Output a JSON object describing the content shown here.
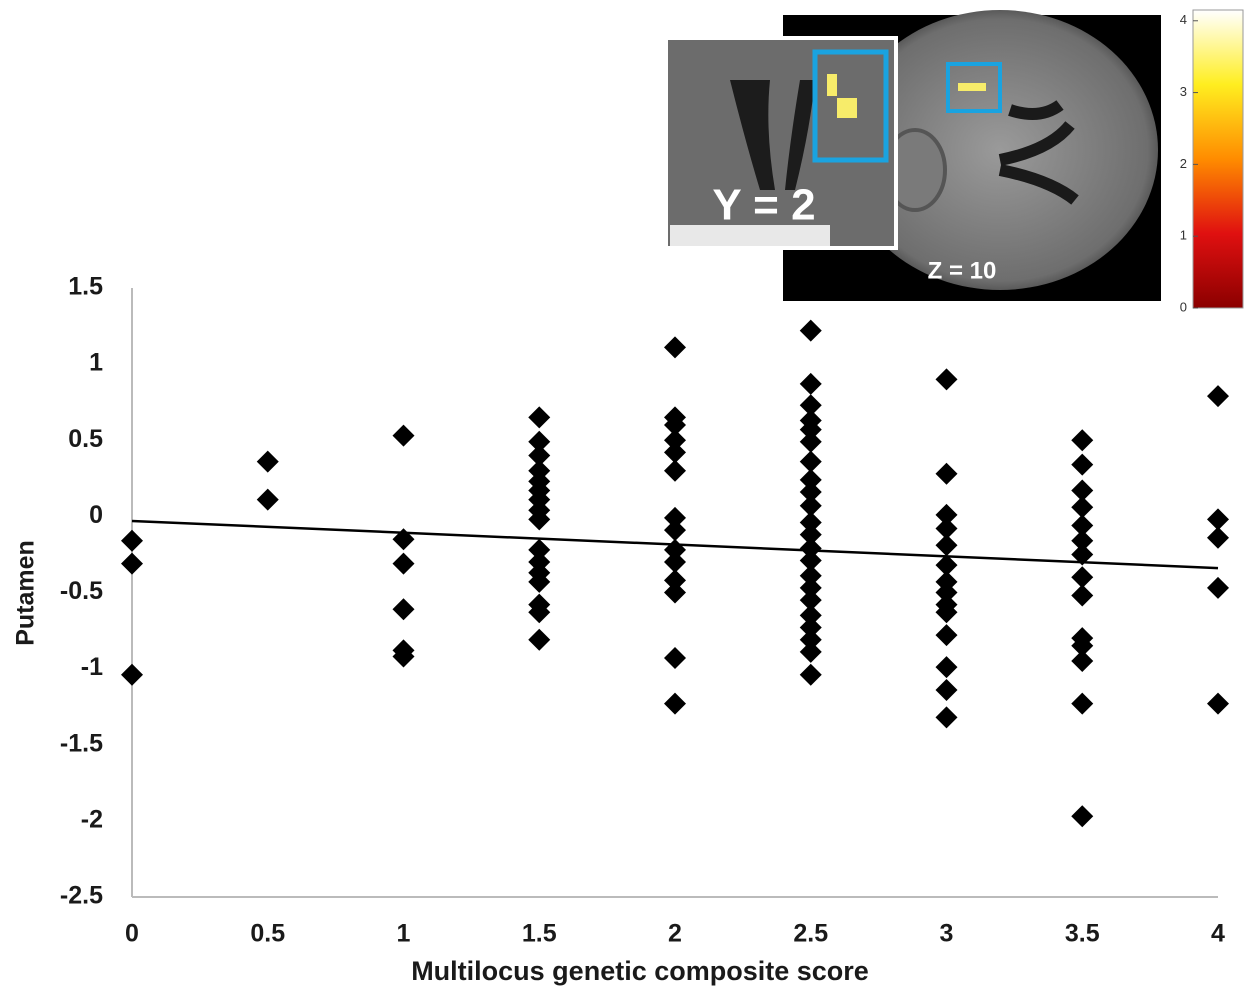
{
  "chart_data": {
    "type": "scatter",
    "xlabel": "Multilocus genetic composite score",
    "ylabel": "Putamen",
    "xlim": [
      0,
      4
    ],
    "ylim": [
      -2.5,
      1.5
    ],
    "xticks": [
      0,
      0.5,
      1,
      1.5,
      2,
      2.5,
      3,
      3.5,
      4
    ],
    "yticks": [
      1.5,
      1,
      0.5,
      0,
      -0.5,
      -1,
      -1.5,
      -2,
      -2.5
    ],
    "grid": false,
    "series": [
      {
        "color": "#000000",
        "x": [
          0,
          0,
          0,
          0.5,
          0.5,
          1,
          1,
          1,
          1,
          1,
          1,
          1.5,
          1.5,
          1.5,
          1.5,
          1.5,
          1.5,
          1.5,
          1.5,
          1.5,
          1.5,
          1.5,
          1.5,
          1.5,
          1.5,
          1.5,
          1.5,
          2,
          2,
          2,
          2,
          2,
          2,
          2,
          2,
          2,
          2,
          2,
          2,
          2,
          2,
          2.5,
          2.5,
          2.5,
          2.5,
          2.5,
          2.5,
          2.5,
          2.5,
          2.5,
          2.5,
          2.5,
          2.5,
          2.5,
          2.5,
          2.5,
          2.5,
          2.5,
          2.5,
          2.5,
          2.5,
          2.5,
          2.5,
          3,
          3,
          3,
          3,
          3,
          3,
          3,
          3,
          3,
          3,
          3,
          3,
          3,
          3,
          3.5,
          3.5,
          3.5,
          3.5,
          3.5,
          3.5,
          3.5,
          3.5,
          3.5,
          3.5,
          3.5,
          3.5,
          3.5,
          3.5,
          4,
          4,
          4,
          4,
          4
        ],
        "values": [
          -0.16,
          -0.31,
          -1.04,
          0.36,
          0.11,
          0.53,
          -0.15,
          -0.31,
          -0.61,
          -0.88,
          -0.92,
          0.65,
          0.49,
          0.4,
          0.3,
          0.23,
          0.17,
          0.11,
          0.04,
          -0.02,
          -0.22,
          -0.3,
          -0.37,
          -0.43,
          -0.58,
          -0.63,
          -0.81,
          1.11,
          0.65,
          0.6,
          0.5,
          0.42,
          0.3,
          -0.01,
          -0.09,
          -0.22,
          -0.3,
          -0.42,
          -0.5,
          -0.93,
          -1.23,
          1.22,
          0.87,
          0.73,
          0.63,
          0.57,
          0.49,
          0.36,
          0.24,
          0.16,
          0.07,
          -0.04,
          -0.12,
          -0.21,
          -0.29,
          -0.39,
          -0.47,
          -0.55,
          -0.65,
          -0.73,
          -0.81,
          -0.89,
          -1.04,
          0.9,
          0.28,
          0.01,
          -0.08,
          -0.19,
          -0.32,
          -0.43,
          -0.5,
          -0.58,
          -0.63,
          -0.78,
          -0.99,
          -1.14,
          -1.32,
          0.5,
          0.34,
          0.17,
          0.06,
          -0.06,
          -0.16,
          -0.25,
          -0.4,
          -0.52,
          -0.8,
          -0.85,
          -0.95,
          -1.23,
          -1.97,
          0.79,
          -0.02,
          -0.14,
          -0.47,
          -1.23
        ]
      }
    ],
    "fit": {
      "color": "#000000",
      "x": [
        0,
        4
      ],
      "values": [
        -0.03,
        -0.34
      ]
    }
  },
  "inset": {
    "labels": [
      "Y = 2",
      "Z = 10"
    ],
    "colorbar": {
      "lim": [
        0,
        4.15
      ],
      "ticks": [
        0,
        1,
        2,
        3,
        4
      ]
    }
  }
}
